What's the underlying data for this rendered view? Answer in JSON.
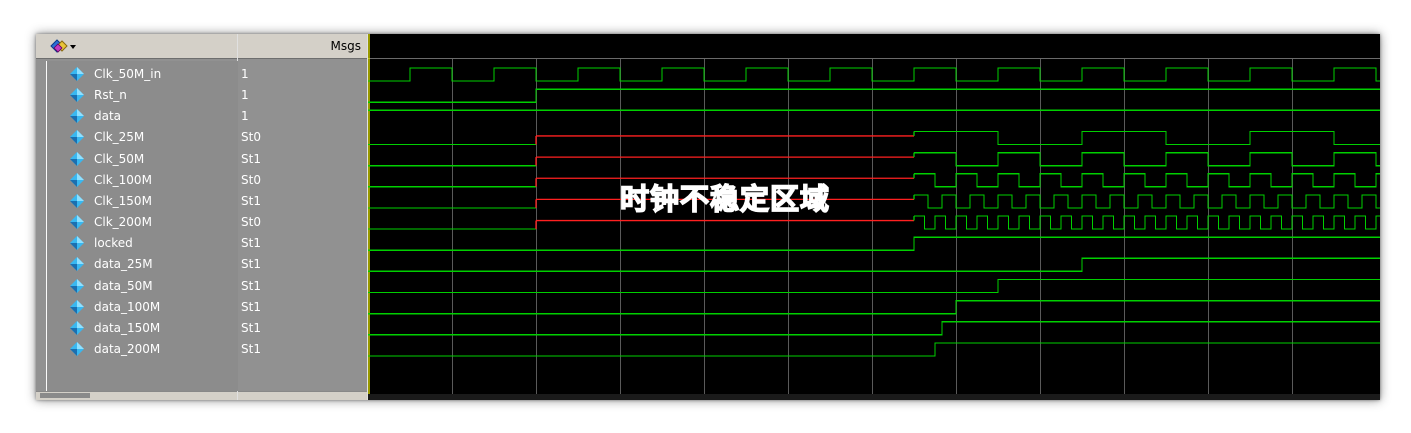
{
  "window": {
    "msgs_label": "Msgs"
  },
  "annotation": {
    "text": "时钟不稳定区域"
  },
  "colors": {
    "wave_background": "#000000",
    "signal_stable": "#00d000",
    "signal_unstable": "#ff2020",
    "grid": "#5a5a5a",
    "cursor": "#ffff00"
  },
  "signals": [
    {
      "name": "Clk_50M_in",
      "value": "1",
      "icon": "diamond-signal-icon"
    },
    {
      "name": "Rst_n",
      "value": "1",
      "icon": "diamond-signal-icon"
    },
    {
      "name": "data",
      "value": "1",
      "icon": "diamond-signal-icon"
    },
    {
      "name": "Clk_25M",
      "value": "St0",
      "icon": "diamond-signal-icon"
    },
    {
      "name": "Clk_50M",
      "value": "St1",
      "icon": "diamond-signal-icon"
    },
    {
      "name": "Clk_100M",
      "value": "St0",
      "icon": "diamond-signal-icon"
    },
    {
      "name": "Clk_150M",
      "value": "St1",
      "icon": "diamond-signal-icon"
    },
    {
      "name": "Clk_200M",
      "value": "St0",
      "icon": "diamond-signal-icon"
    },
    {
      "name": "locked",
      "value": "St1",
      "icon": "diamond-signal-icon"
    },
    {
      "name": "data_25M",
      "value": "St1",
      "icon": "diamond-signal-icon"
    },
    {
      "name": "data_50M",
      "value": "St1",
      "icon": "diamond-signal-icon"
    },
    {
      "name": "data_100M",
      "value": "St1",
      "icon": "diamond-signal-icon"
    },
    {
      "name": "data_150M",
      "value": "St1",
      "icon": "diamond-signal-icon"
    },
    {
      "name": "data_200M",
      "value": "St1",
      "icon": "diamond-signal-icon"
    }
  ]
}
